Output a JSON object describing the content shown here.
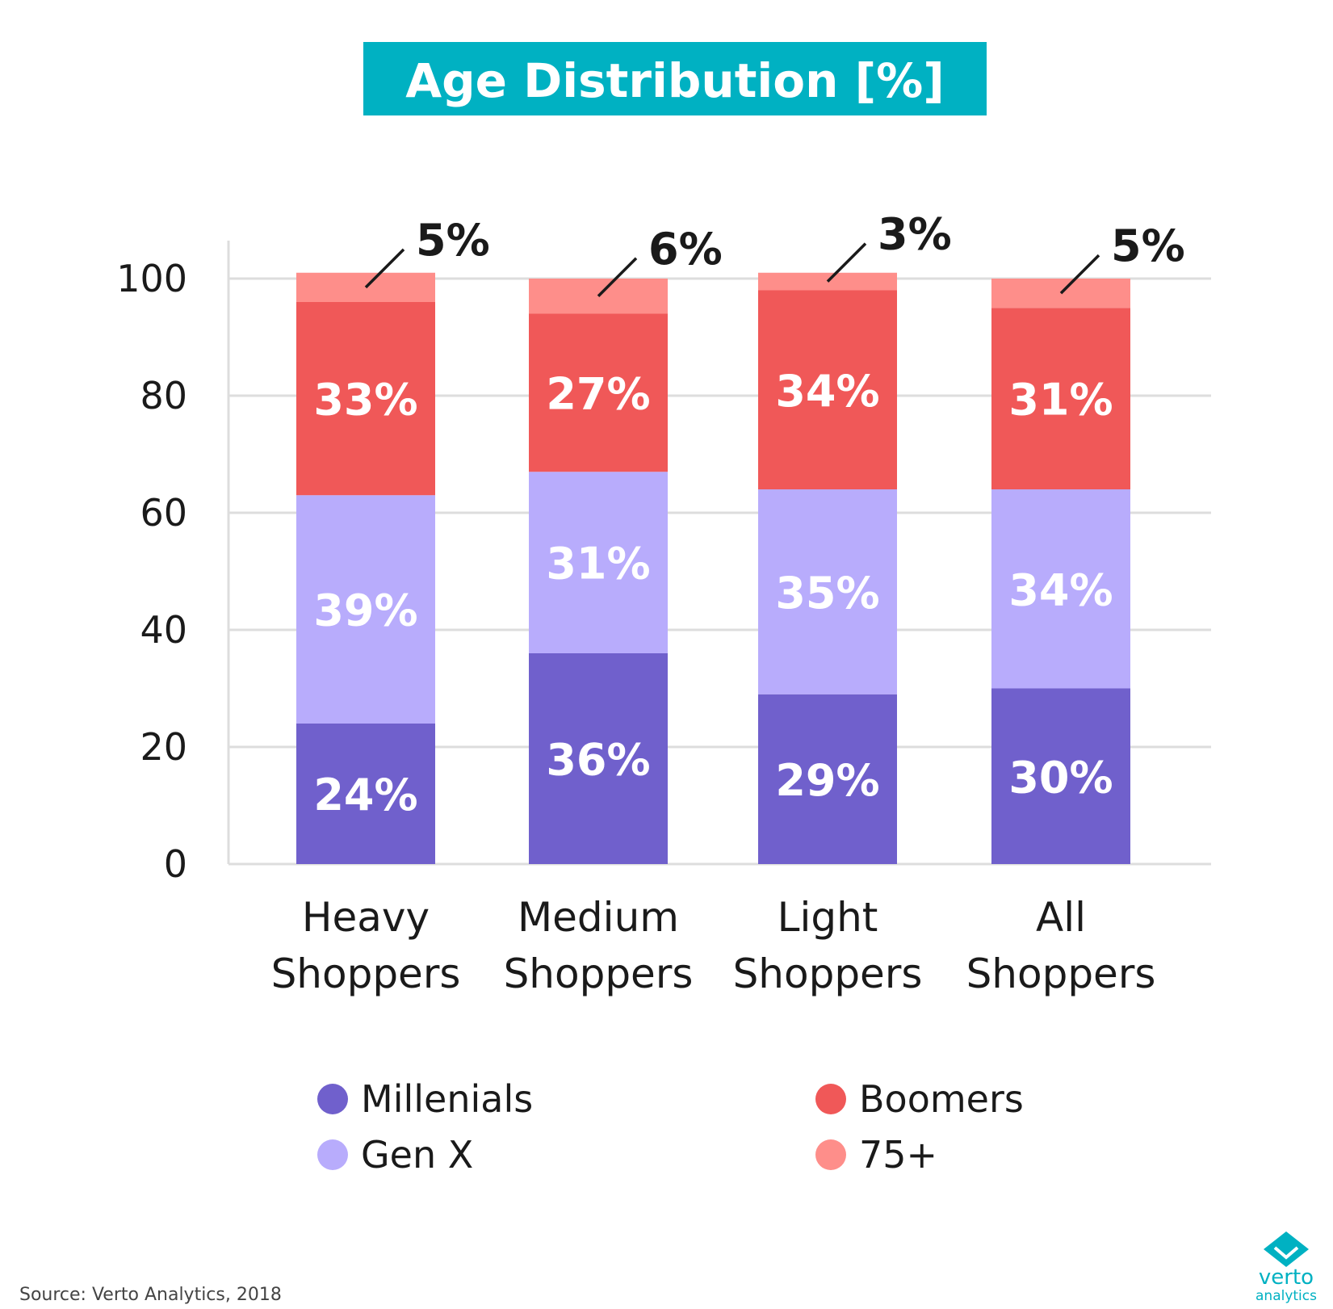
{
  "chart_data": {
    "type": "bar",
    "stacked": true,
    "title": "Age Distribution [%]",
    "categories": [
      [
        "Heavy",
        "Shoppers"
      ],
      [
        "Medium",
        "Shoppers"
      ],
      [
        "Light",
        "Shoppers"
      ],
      [
        "All",
        "Shoppers"
      ]
    ],
    "series": [
      {
        "name": "Millenials",
        "color": "#7060cc",
        "values": [
          24,
          36,
          29,
          30
        ],
        "labels": [
          "24%",
          "36%",
          "29%",
          "30%"
        ]
      },
      {
        "name": "Gen X",
        "color": "#b8acfc",
        "values": [
          39,
          31,
          35,
          34
        ],
        "labels": [
          "39%",
          "31%",
          "35%",
          "34%"
        ]
      },
      {
        "name": "Boomers",
        "color": "#f05858",
        "values": [
          33,
          27,
          34,
          31
        ],
        "labels": [
          "33%",
          "27%",
          "34%",
          "31%"
        ]
      },
      {
        "name": "75+",
        "color": "#fe8e8a",
        "values": [
          5,
          6,
          3,
          5
        ],
        "labels": [
          "5%",
          "6%",
          "3%",
          "5%"
        ]
      }
    ],
    "yticks": [
      "0",
      "20",
      "40",
      "60",
      "80",
      "100"
    ],
    "ylim": [
      0,
      100
    ],
    "grid": true,
    "legend_position": "bottom"
  },
  "title_bg_color": "#00b1c2",
  "source": "Source: Verto Analytics, 2018",
  "logo": {
    "name": "verto",
    "sub": "analytics",
    "color": "#00b1c2"
  }
}
